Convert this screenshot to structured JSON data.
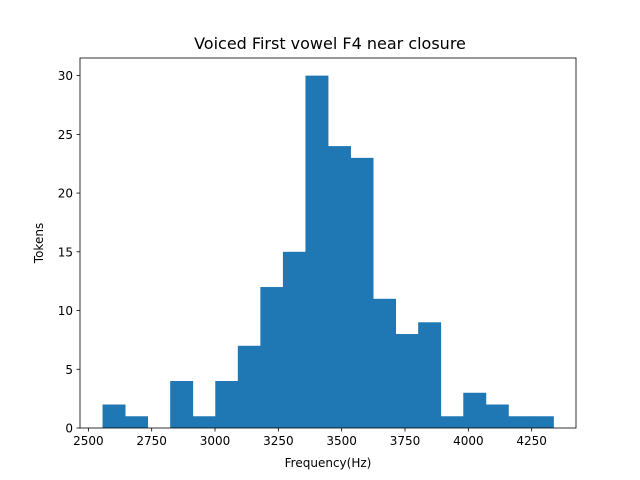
{
  "chart_data": {
    "type": "bar",
    "title": "Voiced First vowel F4 near closure",
    "xlabel": "Frequency(Hz)",
    "ylabel": "Tokens",
    "bin_start": 2556,
    "bin_width": 89,
    "counts": [
      2,
      1,
      0,
      4,
      1,
      4,
      7,
      12,
      15,
      30,
      24,
      23,
      11,
      8,
      9,
      1,
      3,
      2,
      1,
      1
    ],
    "xlim": [
      2467,
      4425
    ],
    "ylim": [
      0,
      31.5
    ],
    "xticks": [
      2500,
      2750,
      3000,
      3250,
      3500,
      3750,
      4000,
      4250
    ],
    "yticks": [
      0,
      5,
      10,
      15,
      20,
      25,
      30
    ],
    "color": "#1f77b4",
    "grid": false
  }
}
